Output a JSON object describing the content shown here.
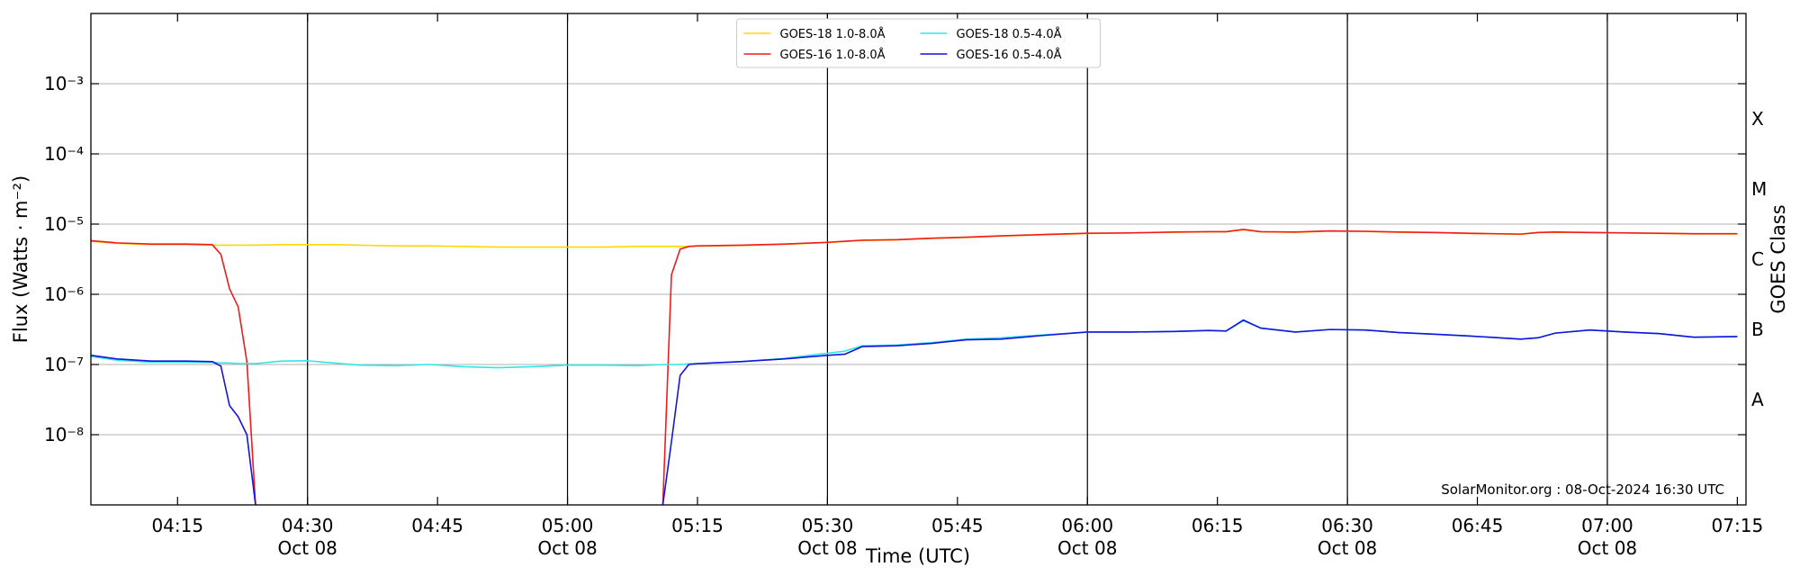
{
  "chart_data": {
    "type": "line",
    "x_label": "Time (UTC)",
    "y_label": "Flux (Watts · m⁻²)",
    "y2_label": "GOES Class",
    "annotation": "SolarMonitor.org : 08-Oct-2024 16:30 UTC",
    "yscale": "log",
    "legend": "upper center",
    "x": [
      245,
      248,
      252,
      256,
      259,
      260,
      261,
      262,
      263,
      264,
      267,
      270,
      273,
      276,
      280,
      284,
      288,
      292,
      296,
      300,
      304,
      308,
      311,
      312,
      313,
      314,
      315,
      320,
      325,
      330,
      332,
      334,
      338,
      342,
      346,
      350,
      355,
      360,
      365,
      370,
      374,
      376,
      378,
      380,
      384,
      388,
      392,
      396,
      400,
      404,
      410,
      412,
      414,
      418,
      422,
      426,
      430,
      435
    ],
    "xlim": [
      245,
      436
    ],
    "xticks": [
      {
        "value": 255,
        "label": "04:15"
      },
      {
        "value": 270,
        "label": "04:30",
        "date": "Oct 08"
      },
      {
        "value": 285,
        "label": "04:45"
      },
      {
        "value": 300,
        "label": "05:00",
        "date": "Oct 08"
      },
      {
        "value": 315,
        "label": "05:15"
      },
      {
        "value": 330,
        "label": "05:30",
        "date": "Oct 08"
      },
      {
        "value": 345,
        "label": "05:45"
      },
      {
        "value": 360,
        "label": "06:00",
        "date": "Oct 08"
      },
      {
        "value": 375,
        "label": "06:15"
      },
      {
        "value": 390,
        "label": "06:30",
        "date": "Oct 08"
      },
      {
        "value": 405,
        "label": "06:45"
      },
      {
        "value": 420,
        "label": "07:00",
        "date": "Oct 08"
      },
      {
        "value": 435,
        "label": "07:15"
      }
    ],
    "ylim": [
      1e-09,
      0.01
    ],
    "yticks": [
      {
        "value": 1e-08,
        "label": "10⁻⁸"
      },
      {
        "value": 1e-07,
        "label": "10⁻⁷"
      },
      {
        "value": 1e-06,
        "label": "10⁻⁶"
      },
      {
        "value": 1e-05,
        "label": "10⁻⁵"
      },
      {
        "value": 0.0001,
        "label": "10⁻⁴"
      },
      {
        "value": 0.001,
        "label": "10⁻³"
      }
    ],
    "y2lim": [
      1e-09,
      0.01
    ],
    "y2ticks": [
      {
        "value": 3.162e-08,
        "label": "A"
      },
      {
        "value": 3.162e-07,
        "label": "B"
      },
      {
        "value": 3.162e-06,
        "label": "C"
      },
      {
        "value": 3.162e-05,
        "label": "M"
      },
      {
        "value": 0.0003162,
        "label": "X"
      }
    ],
    "grid": true,
    "series": [
      {
        "name": "GOES-18 1.0-8.0Å",
        "color": "#ffd700",
        "values": [
          5.7e-06,
          5.3e-06,
          5.1e-06,
          5.1e-06,
          5e-06,
          5e-06,
          5e-06,
          5e-06,
          5e-06,
          5e-06,
          5.1e-06,
          5.1e-06,
          5.1e-06,
          5e-06,
          4.9e-06,
          4.9e-06,
          4.8e-06,
          4.7e-06,
          4.7e-06,
          4.7e-06,
          4.7e-06,
          4.8e-06,
          4.8e-06,
          4.8e-06,
          4.8e-06,
          4.8e-06,
          4.85e-06,
          4.95e-06,
          5.15e-06,
          5.45e-06,
          5.65e-06,
          5.85e-06,
          5.95e-06,
          6.25e-06,
          6.45e-06,
          6.75e-06,
          7.05e-06,
          7.35e-06,
          7.45e-06,
          7.65e-06,
          7.75e-06,
          7.75e-06,
          8.3e-06,
          7.75e-06,
          7.65e-06,
          7.95e-06,
          7.85e-06,
          7.65e-06,
          7.55e-06,
          7.35e-06,
          7.15e-06,
          7.55e-06,
          7.65e-06,
          7.55e-06,
          7.45e-06,
          7.35e-06,
          7.25e-06,
          7.25e-06
        ]
      },
      {
        "name": "GOES-16 1.0-8.0Å",
        "color": "#ee1c1c",
        "values": [
          5.8e-06,
          5.4e-06,
          5.2e-06,
          5.2e-06,
          5.1e-06,
          3.7e-06,
          1.2e-06,
          6.6e-07,
          1.1e-07,
          1e-09,
          null,
          null,
          null,
          null,
          null,
          null,
          null,
          null,
          null,
          null,
          null,
          null,
          1e-09,
          1.9e-06,
          4.4e-06,
          4.8e-06,
          4.9e-06,
          5e-06,
          5.2e-06,
          5.5e-06,
          5.7e-06,
          5.9e-06,
          6e-06,
          6.3e-06,
          6.5e-06,
          6.8e-06,
          7.1e-06,
          7.4e-06,
          7.5e-06,
          7.7e-06,
          7.8e-06,
          7.8e-06,
          8.4e-06,
          7.8e-06,
          7.7e-06,
          8e-06,
          7.9e-06,
          7.7e-06,
          7.6e-06,
          7.4e-06,
          7.2e-06,
          7.6e-06,
          7.7e-06,
          7.6e-06,
          7.5e-06,
          7.4e-06,
          7.3e-06,
          7.3e-06
        ]
      },
      {
        "name": "GOES-18 0.5-4.0Å",
        "color": "#33e6e6",
        "values": [
          1.3e-07,
          1.15e-07,
          1.08e-07,
          1.08e-07,
          1.07e-07,
          1.05e-07,
          1.05e-07,
          1.03e-07,
          1.03e-07,
          1.03e-07,
          1.12e-07,
          1.13e-07,
          1.05e-07,
          9.8e-08,
          9.6e-08,
          1e-07,
          9.3e-08,
          9e-08,
          9.3e-08,
          9.8e-08,
          9.8e-08,
          9.6e-08,
          1e-07,
          1e-07,
          1e-07,
          1.02e-07,
          1.03e-07,
          1.1e-07,
          1.22e-07,
          1.45e-07,
          1.55e-07,
          1.85e-07,
          1.9e-07,
          2.05e-07,
          2.3e-07,
          2.4e-07,
          2.65e-07,
          2.9e-07,
          2.9e-07,
          2.95e-07,
          3.05e-07,
          3e-07,
          4.2e-07,
          3.3e-07,
          2.9e-07,
          3.15e-07,
          3.1e-07,
          2.85e-07,
          2.7e-07,
          2.55e-07,
          2.3e-07,
          2.4e-07,
          2.8e-07,
          3.1e-07,
          2.9e-07,
          2.75e-07,
          2.45e-07,
          2.5e-07
        ]
      },
      {
        "name": "GOES-16 0.5-4.0Å",
        "color": "#1414dc",
        "values": [
          1.35e-07,
          1.2e-07,
          1.12e-07,
          1.12e-07,
          1.1e-07,
          9.5e-08,
          2.6e-08,
          1.8e-08,
          1e-08,
          1e-09,
          null,
          null,
          null,
          null,
          null,
          null,
          null,
          null,
          null,
          null,
          null,
          null,
          1e-09,
          8e-09,
          7e-08,
          1e-07,
          1.03e-07,
          1.1e-07,
          1.2e-07,
          1.35e-07,
          1.4e-07,
          1.8e-07,
          1.85e-07,
          2e-07,
          2.25e-07,
          2.3e-07,
          2.6e-07,
          2.9e-07,
          2.9e-07,
          2.95e-07,
          3.05e-07,
          3e-07,
          4.3e-07,
          3.3e-07,
          2.9e-07,
          3.15e-07,
          3.1e-07,
          2.85e-07,
          2.7e-07,
          2.55e-07,
          2.3e-07,
          2.4e-07,
          2.8e-07,
          3.1e-07,
          2.9e-07,
          2.75e-07,
          2.45e-07,
          2.5e-07
        ]
      }
    ]
  }
}
